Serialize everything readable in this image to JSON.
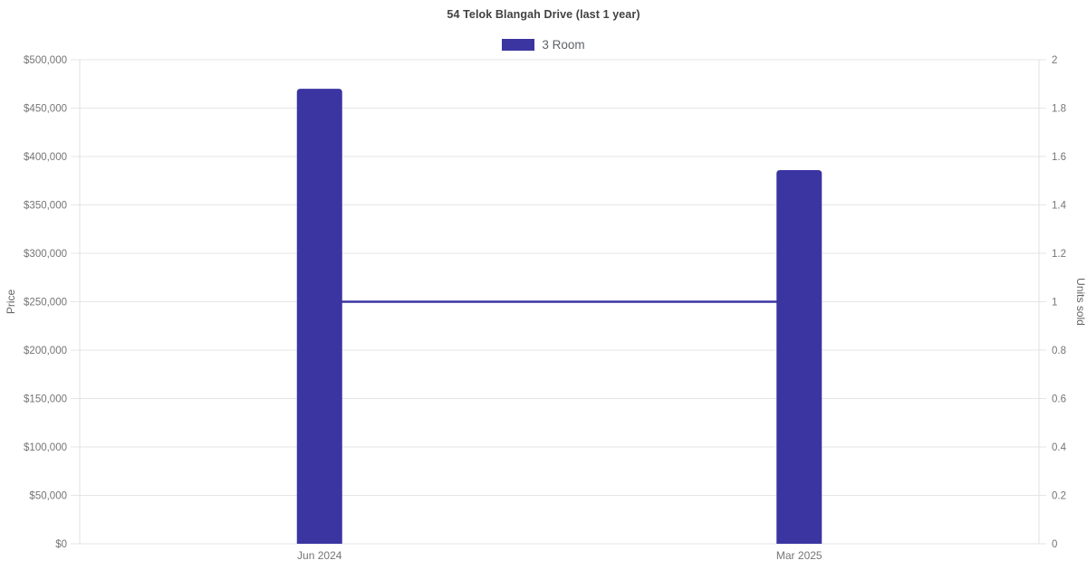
{
  "title": "54 Telok Blangah Drive (last 1 year)",
  "legend": {
    "entries": [
      {
        "label": "3 Room",
        "color": "#3b35a2"
      }
    ]
  },
  "colors": {
    "bar": "#3b35a2",
    "line": "#3b35a2",
    "grid": "#e6e6e6",
    "axis": "#e0e0e0",
    "tick_text": "#757575",
    "title_text": "#424242",
    "axis_title_text": "#666666",
    "legend_text": "#5f6368"
  },
  "chart_data": {
    "type": "bar",
    "title": "54 Telok Blangah Drive (last 1 year)",
    "categories": [
      "Jun 2024",
      "Mar 2025"
    ],
    "series": [
      {
        "name": "3 Room",
        "type": "bar",
        "axis": "left",
        "values": [
          470000,
          386000
        ]
      },
      {
        "name": "3 Room units sold",
        "type": "line",
        "axis": "right",
        "values": [
          1,
          1
        ]
      }
    ],
    "y_left": {
      "label": "Price",
      "min": 0,
      "max": 500000,
      "tick_step": 50000,
      "tick_labels": [
        "$0",
        "$50,000",
        "$100,000",
        "$150,000",
        "$200,000",
        "$250,000",
        "$300,000",
        "$350,000",
        "$400,000",
        "$450,000",
        "$500,000"
      ]
    },
    "y_right": {
      "label": "Units sold",
      "min": 0,
      "max": 2,
      "tick_step": 0.2,
      "tick_labels": [
        "0",
        "0.2",
        "0.4",
        "0.6",
        "0.8",
        "1",
        "1.2",
        "1.4",
        "1.6",
        "1.8",
        "2"
      ]
    },
    "legend_position": "top",
    "grid": "horizontal"
  }
}
